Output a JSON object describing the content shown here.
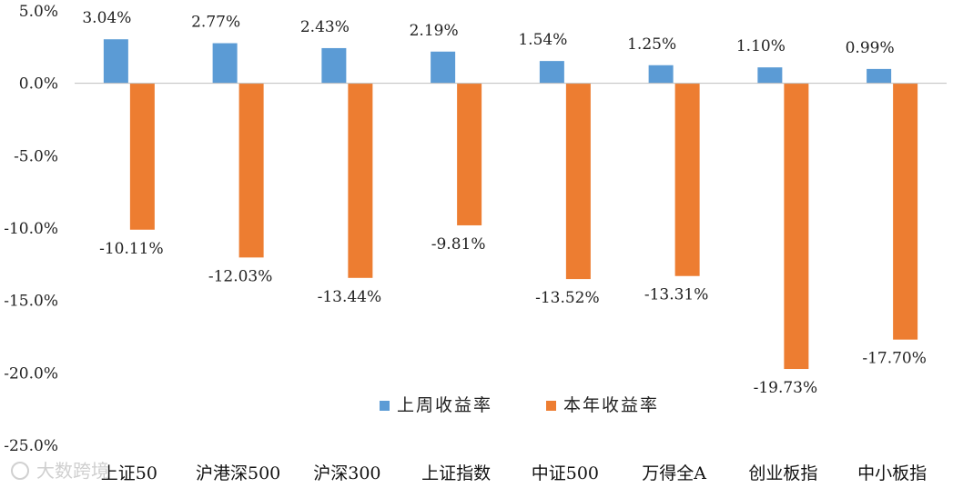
{
  "chart_data": {
    "type": "bar",
    "categories": [
      "上证50",
      "沪港深500",
      "沪深300",
      "上证指数",
      "中证500",
      "万得全A",
      "创业板指",
      "中小板指"
    ],
    "series": [
      {
        "name": "上周收益率",
        "values": [
          3.04,
          2.77,
          2.43,
          2.19,
          1.54,
          1.25,
          1.1,
          0.99
        ],
        "labels": [
          "3.04%",
          "2.77%",
          "2.43%",
          "2.19%",
          "1.54%",
          "1.25%",
          "1.10%",
          "0.99%"
        ],
        "color": "#5B9BD5"
      },
      {
        "name": "本年收益率",
        "values": [
          -10.11,
          -12.03,
          -13.44,
          -9.81,
          -13.52,
          -13.31,
          -19.73,
          -17.7
        ],
        "labels": [
          "-10.11%",
          "-12.03%",
          "-13.44%",
          "-9.81%",
          "-13.52%",
          "-13.31%",
          "-19.73%",
          "-17.70%"
        ],
        "color": "#ED7D31"
      }
    ],
    "ylim": [
      -25,
      5
    ],
    "yticks": [
      "5.0%",
      "0.0%",
      "-5.0%",
      "-10.0%",
      "-15.0%",
      "-20.0%",
      "-25.0%"
    ],
    "ytick_values": [
      5,
      0,
      -5,
      -10,
      -15,
      -20,
      -25
    ],
    "legend_position": "lower-center",
    "grid": false
  },
  "watermark": "大数跨境"
}
